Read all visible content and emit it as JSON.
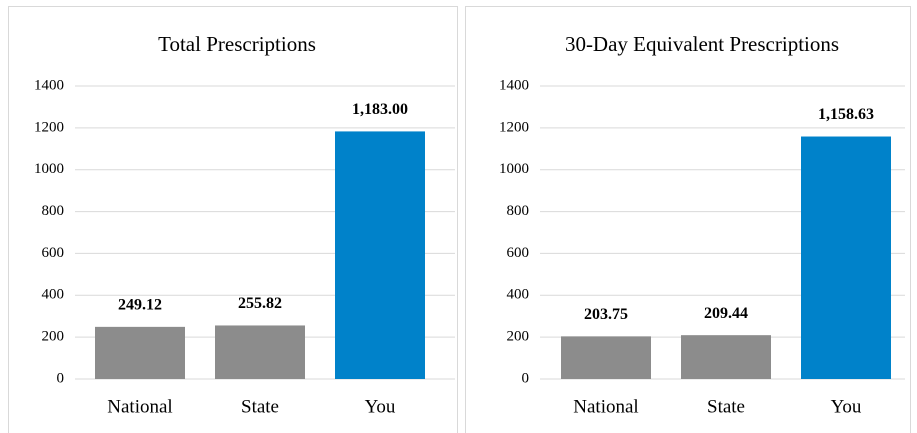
{
  "chart_data": [
    {
      "type": "bar",
      "title": "Total Prescriptions",
      "categories": [
        "National",
        "State",
        "You"
      ],
      "values": [
        249.12,
        255.82,
        1183.0
      ],
      "value_labels": [
        "249.12",
        "255.82",
        "1,183.00"
      ],
      "colors": [
        "#8c8c8c",
        "#8c8c8c",
        "#0082ca"
      ],
      "ylim": [
        0,
        1400
      ],
      "yticks": [
        0,
        200,
        400,
        600,
        800,
        1000,
        1200,
        1400
      ],
      "grid": true
    },
    {
      "type": "bar",
      "title": "30-Day Equivalent Prescriptions",
      "categories": [
        "National",
        "State",
        "You"
      ],
      "values": [
        203.75,
        209.44,
        1158.63
      ],
      "value_labels": [
        "203.75",
        "209.44",
        "1,158.63"
      ],
      "colors": [
        "#8c8c8c",
        "#8c8c8c",
        "#0082ca"
      ],
      "ylim": [
        0,
        1400
      ],
      "yticks": [
        0,
        200,
        400,
        600,
        800,
        1000,
        1200,
        1400
      ],
      "grid": true
    }
  ]
}
